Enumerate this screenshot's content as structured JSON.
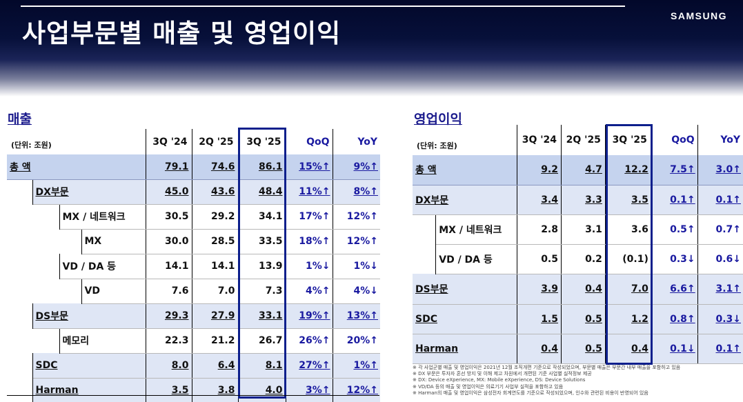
{
  "header": {
    "title": "사업부문별 매출 및 영업이익",
    "logo": "SAMSUNG"
  },
  "sales": {
    "title": "매출",
    "unit": "(단위: 조원)",
    "columns": [
      "3Q '24",
      "2Q '25",
      "3Q '25",
      "QoQ",
      "YoY"
    ],
    "rows": [
      {
        "label": "총 액",
        "indent": 0,
        "style": "total",
        "underline": true,
        "values": [
          "79.1",
          "74.6",
          "86.1"
        ],
        "qoq": "15%↑",
        "yoy": "9%↑"
      },
      {
        "label": "DX부문",
        "indent": 1,
        "style": "group",
        "underline": true,
        "values": [
          "45.0",
          "43.6",
          "48.4"
        ],
        "qoq": "11%↑",
        "yoy": "8%↑"
      },
      {
        "label": "MX / 네트워크",
        "indent": 2,
        "style": "plain",
        "underline": false,
        "values": [
          "30.5",
          "29.2",
          "34.1"
        ],
        "qoq": "17%↑",
        "yoy": "12%↑"
      },
      {
        "label": "MX",
        "indent": 3,
        "style": "plain",
        "underline": false,
        "values": [
          "30.0",
          "28.5",
          "33.5"
        ],
        "qoq": "18%↑",
        "yoy": "12%↑"
      },
      {
        "label": "VD / DA 등",
        "indent": 2,
        "style": "plain",
        "underline": false,
        "values": [
          "14.1",
          "14.1",
          "13.9"
        ],
        "qoq": "1%↓",
        "yoy": "1%↓"
      },
      {
        "label": "VD",
        "indent": 3,
        "style": "plain",
        "underline": false,
        "values": [
          "7.6",
          "7.0",
          "7.3"
        ],
        "qoq": "4%↑",
        "yoy": "4%↓"
      },
      {
        "label": "DS부문",
        "indent": 1,
        "style": "group",
        "underline": true,
        "values": [
          "29.3",
          "27.9",
          "33.1"
        ],
        "qoq": "19%↑",
        "yoy": "13%↑"
      },
      {
        "label": "메모리",
        "indent": 2,
        "style": "plain",
        "underline": false,
        "values": [
          "22.3",
          "21.2",
          "26.7"
        ],
        "qoq": "26%↑",
        "yoy": "20%↑"
      },
      {
        "label": "SDC",
        "indent": 1,
        "style": "group",
        "underline": true,
        "values": [
          "8.0",
          "6.4",
          "8.1"
        ],
        "qoq": "27%↑",
        "yoy": "1%↑"
      },
      {
        "label": "Harman",
        "indent": 1,
        "style": "group",
        "underline": true,
        "values": [
          "3.5",
          "3.8",
          "4.0"
        ],
        "qoq": "3%↑",
        "yoy": "12%↑"
      }
    ]
  },
  "op_profit": {
    "title": "영업이익",
    "unit": "(단위: 조원)",
    "columns": [
      "3Q '24",
      "2Q '25",
      "3Q '25",
      "QoQ",
      "YoY"
    ],
    "rows": [
      {
        "label": "총 액",
        "indent": 0,
        "style": "total",
        "underline": true,
        "values": [
          "9.2",
          "4.7",
          "12.2"
        ],
        "qoq": "7.5↑",
        "yoy": "3.0↑"
      },
      {
        "label": "DX부문",
        "indent": 0,
        "style": "group",
        "underline": true,
        "values": [
          "3.4",
          "3.3",
          "3.5"
        ],
        "qoq": "0.1↑",
        "yoy": "0.1↑"
      },
      {
        "label": "MX / 네트워크",
        "indent": 1,
        "style": "plain",
        "underline": false,
        "values": [
          "2.8",
          "3.1",
          "3.6"
        ],
        "qoq": "0.5↑",
        "yoy": "0.7↑"
      },
      {
        "label": "VD / DA 등",
        "indent": 1,
        "style": "plain",
        "underline": false,
        "values": [
          "0.5",
          "0.2",
          "(0.1)"
        ],
        "qoq": "0.3↓",
        "yoy": "0.6↓"
      },
      {
        "label": "DS부문",
        "indent": 0,
        "style": "group",
        "underline": true,
        "values": [
          "3.9",
          "0.4",
          "7.0"
        ],
        "qoq": "6.6↑",
        "yoy": "3.1↑"
      },
      {
        "label": "SDC",
        "indent": 0,
        "style": "group",
        "underline": true,
        "values": [
          "1.5",
          "0.5",
          "1.2"
        ],
        "qoq": "0.8↑",
        "yoy": "0.3↓"
      },
      {
        "label": "Harman",
        "indent": 0,
        "style": "group",
        "underline": true,
        "values": [
          "0.4",
          "0.5",
          "0.4"
        ],
        "qoq": "0.1↓",
        "yoy": "0.1↑"
      }
    ]
  },
  "footnotes": [
    "※ 각 사업군별 매출 및 영업이익은 2021년 12월 조직개편 기준으로 작성되었으며, 부문별 매출은 부문간 내부 매출을 포함하고 있음",
    "※ DX 부문은 투자자 혼선 방지 및 이해 제고 차원에서 개편된 기준 사업별 실적정보 제공",
    "※ DX: Device eXperience, MX: Mobile eXperience, DS: Device Solutions",
    "※ VD/DA 등의 매출 및 영업이익은 의료기기 사업부 실적을 포함하고 있음",
    "※ Harman의 매출 및 영업이익은 삼성전자 회계연도를 기준으로 작성되었으며, 인수와 관련된 비용이 반영되어 있음"
  ]
}
